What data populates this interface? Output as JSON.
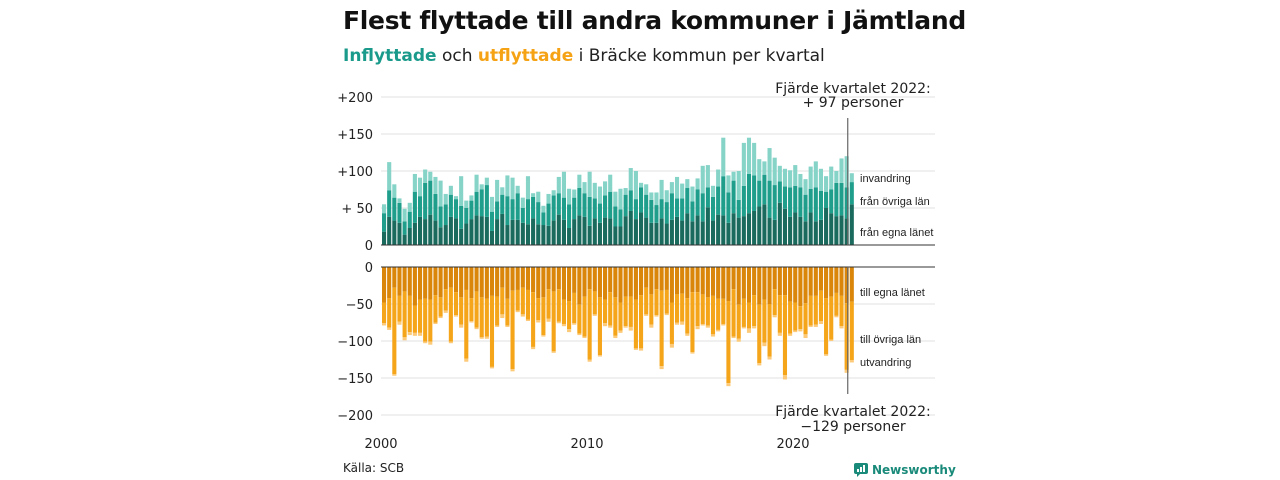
{
  "header": {
    "title": "Flest flyttade till andra kommuner i Jämtland",
    "subtitle_inflow": "Inflyttade",
    "subtitle_and": " och ",
    "subtitle_outflow": "utflyttade",
    "subtitle_rest": " i Bräcke kommun per kvartal"
  },
  "source": "Källa: SCB",
  "brand": {
    "name": "Newsworthy",
    "icon": "newsworthy-logo-icon",
    "color": "#1a8a7a"
  },
  "colors": {
    "in_own_county": "#1a6b5e",
    "in_other_counties": "#1f9e8c",
    "immigration": "#86d3c8",
    "out_own_county": "#d9860a",
    "out_other_counties": "#f5a51a",
    "emigration": "#fcca78"
  },
  "chart_data": {
    "type": "bar",
    "stacked": true,
    "frequency": "quarterly",
    "x_range": [
      "2000 Q1",
      "2022 Q4"
    ],
    "x_ticks": [
      "2000",
      "2010",
      "2020"
    ],
    "grid": true,
    "panels": [
      {
        "name": "inflyttade",
        "ylim": [
          0,
          200
        ],
        "y_ticks": [
          0,
          50,
          100,
          150,
          200
        ],
        "y_tick_labels": [
          "0",
          "+ 50",
          "+100",
          "+150",
          "+200"
        ],
        "series_labels": [
          "invandring",
          "från övriga län",
          "från egna länet"
        ],
        "annotation": {
          "line1": "Fjärde kvartalet 2022:",
          "line2": "+ 97 personer"
        },
        "series": [
          {
            "name": "från egna länet",
            "values": [
              18,
              38,
              33,
              30,
              14,
              23,
              30,
              38,
              35,
              41,
              33,
              24,
              27,
              38,
              36,
              22,
              29,
              35,
              40,
              39,
              38,
              19,
              35,
              42,
              27,
              34,
              34,
              30,
              28,
              36,
              28,
              27,
              26,
              33,
              41,
              34,
              23,
              35,
              40,
              38,
              26,
              36,
              30,
              37,
              36,
              25,
              25,
              39,
              46,
              35,
              44,
              37,
              30,
              30,
              36,
              29,
              34,
              38,
              33,
              43,
              32,
              40,
              32,
              51,
              33,
              41,
              40,
              30,
              43,
              37,
              39,
              43,
              46,
              52,
              55,
              37,
              34,
              57,
              49,
              38,
              44,
              38,
              32,
              44,
              32,
              34,
              50,
              43,
              39,
              40,
              36,
              55
            ]
          },
          {
            "name": "från övriga län",
            "values": [
              25,
              36,
              31,
              27,
              18,
              22,
              42,
              28,
              49,
              46,
              36,
              28,
              28,
              30,
              26,
              31,
              21,
              25,
              32,
              36,
              43,
              26,
              24,
              26,
              39,
              28,
              36,
              20,
              34,
              29,
              30,
              17,
              30,
              34,
              29,
              30,
              32,
              29,
              37,
              32,
              39,
              27,
              26,
              30,
              36,
              27,
              23,
              29,
              28,
              27,
              34,
              31,
              31,
              24,
              26,
              29,
              36,
              25,
              30,
              34,
              27,
              35,
              38,
              27,
              32,
              38,
              53,
              41,
              44,
              24,
              41,
              53,
              48,
              35,
              40,
              50,
              47,
              29,
              30,
              40,
              36,
              40,
              36,
              32,
              46,
              39,
              22,
              32,
              45,
              44,
              42,
              30
            ]
          },
          {
            "name": "invandring",
            "values": [
              12,
              38,
              18,
              6,
              17,
              12,
              24,
              25,
              18,
              12,
              23,
              35,
              14,
              12,
              4,
              40,
              10,
              7,
              23,
              7,
              10,
              20,
              29,
              10,
              28,
              29,
              10,
              14,
              31,
              5,
              14,
              9,
              13,
              7,
              22,
              35,
              21,
              11,
              18,
              15,
              34,
              21,
              23,
              19,
              23,
              20,
              28,
              9,
              30,
              38,
              6,
              14,
              10,
              17,
              26,
              16,
              15,
              29,
              20,
              12,
              20,
              15,
              37,
              30,
              15,
              23,
              52,
              23,
              12,
              39,
              58,
              49,
              44,
              29,
              18,
              44,
              37,
              21,
              24,
              23,
              28,
              18,
              21,
              30,
              35,
              30,
              21,
              31,
              16,
              33,
              42,
              12
            ]
          }
        ]
      },
      {
        "name": "utflyttade",
        "ylim": [
          -200,
          0
        ],
        "y_ticks": [
          0,
          -50,
          -100,
          -150,
          -200
        ],
        "y_tick_labels": [
          "0",
          "−50",
          "−100",
          "−150",
          "−200"
        ],
        "series_labels": [
          "till egna länet",
          "till övriga län",
          "utvandring"
        ],
        "annotation": {
          "line1": "Fjärde kvartalet 2022:",
          "line2": "−129 personer"
        },
        "series": [
          {
            "name": "till egna länet",
            "values": [
              -48,
              -42,
              -28,
              -39,
              -33,
              -39,
              -52,
              -44,
              -43,
              -44,
              -38,
              -41,
              -30,
              -28,
              -34,
              -41,
              -31,
              -42,
              -33,
              -41,
              -43,
              -39,
              -40,
              -28,
              -43,
              -32,
              -31,
              -28,
              -31,
              -34,
              -42,
              -41,
              -30,
              -33,
              -30,
              -44,
              -46,
              -35,
              -51,
              -40,
              -30,
              -33,
              -41,
              -44,
              -34,
              -41,
              -48,
              -40,
              -40,
              -44,
              -38,
              -28,
              -37,
              -30,
              -32,
              -31,
              -48,
              -37,
              -36,
              -42,
              -34,
              -34,
              -37,
              -41,
              -39,
              -43,
              -43,
              -46,
              -30,
              -51,
              -43,
              -48,
              -38,
              -51,
              -44,
              -50,
              -30,
              -38,
              -38,
              -47,
              -48,
              -53,
              -49,
              -39,
              -39,
              -32,
              -42,
              -40,
              -35,
              -39,
              -49,
              -47
            ]
          },
          {
            "name": "till övriga län",
            "values": [
              -28,
              -40,
              -117,
              -35,
              -62,
              -49,
              -37,
              -45,
              -58,
              -57,
              -37,
              -26,
              -29,
              -73,
              -31,
              -37,
              -93,
              -31,
              -49,
              -54,
              -51,
              -96,
              -39,
              -36,
              -36,
              -106,
              -28,
              -36,
              -40,
              -74,
              -30,
              -51,
              -40,
              -81,
              -44,
              -33,
              -38,
              -41,
              -39,
              -54,
              -95,
              -31,
              -78,
              -32,
              -45,
              -52,
              -38,
              -40,
              -41,
              -66,
              -72,
              -36,
              -41,
              -35,
              -102,
              -32,
              -56,
              -38,
              -38,
              -48,
              -81,
              -46,
              -40,
              -38,
              -52,
              -42,
              -34,
              -111,
              -64,
              -46,
              -38,
              -35,
              -42,
              -79,
              -58,
              -71,
              -35,
              -51,
              -108,
              -43,
              -38,
              -31,
              -42,
              -40,
              -39,
              -41,
              -76,
              -58,
              -31,
              -41,
              -90,
              -79
            ]
          },
          {
            "name": "utvandring",
            "values": [
              -3,
              -3,
              -2,
              -4,
              -4,
              -4,
              -4,
              -4,
              -2,
              -4,
              -2,
              -2,
              -3,
              -2,
              -2,
              -4,
              -4,
              -2,
              -2,
              -2,
              -3,
              -2,
              -2,
              -5,
              -2,
              -3,
              -2,
              -3,
              -2,
              -3,
              -3,
              -2,
              -4,
              -2,
              -2,
              -3,
              -4,
              -2,
              -2,
              -2,
              -3,
              -2,
              -2,
              -4,
              -3,
              -3,
              -3,
              -2,
              -5,
              -2,
              -3,
              -2,
              -4,
              -2,
              -4,
              -2,
              -5,
              -3,
              -4,
              -3,
              -2,
              -4,
              -2,
              -3,
              -3,
              -2,
              -2,
              -4,
              -2,
              -4,
              -2,
              -6,
              -3,
              -3,
              -5,
              -4,
              -3,
              -4,
              -6,
              -3,
              -2,
              -3,
              -5,
              -2,
              -3,
              -4,
              -2,
              -2,
              -2,
              -3,
              -4,
              -3
            ]
          }
        ]
      }
    ]
  }
}
